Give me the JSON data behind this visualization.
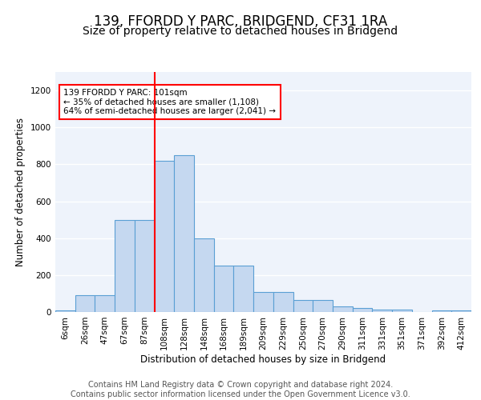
{
  "title": "139, FFORDD Y PARC, BRIDGEND, CF31 1RA",
  "subtitle": "Size of property relative to detached houses in Bridgend",
  "xlabel": "Distribution of detached houses by size in Bridgend",
  "ylabel": "Number of detached properties",
  "bar_labels": [
    "6sqm",
    "26sqm",
    "47sqm",
    "67sqm",
    "87sqm",
    "108sqm",
    "128sqm",
    "148sqm",
    "168sqm",
    "189sqm",
    "209sqm",
    "229sqm",
    "250sqm",
    "270sqm",
    "290sqm",
    "311sqm",
    "331sqm",
    "351sqm",
    "371sqm",
    "392sqm",
    "412sqm"
  ],
  "bar_values": [
    10,
    90,
    90,
    500,
    500,
    820,
    850,
    400,
    250,
    250,
    110,
    110,
    65,
    65,
    30,
    20,
    15,
    15,
    2,
    10,
    10
  ],
  "bar_color": "#c5d8f0",
  "bar_edge_color": "#5a9fd4",
  "red_line_index": 5,
  "annotation_line1": "139 FFORDD Y PARC: 101sqm",
  "annotation_line2": "← 35% of detached houses are smaller (1,108)",
  "annotation_line3": "64% of semi-detached houses are larger (2,041) →",
  "ylim": [
    0,
    1300
  ],
  "yticks": [
    0,
    200,
    400,
    600,
    800,
    1000,
    1200
  ],
  "footer_line1": "Contains HM Land Registry data © Crown copyright and database right 2024.",
  "footer_line2": "Contains public sector information licensed under the Open Government Licence v3.0.",
  "background_color": "#eef3fb",
  "grid_color": "white",
  "title_fontsize": 12,
  "subtitle_fontsize": 10,
  "axis_label_fontsize": 8.5,
  "tick_fontsize": 7.5,
  "footer_fontsize": 7
}
